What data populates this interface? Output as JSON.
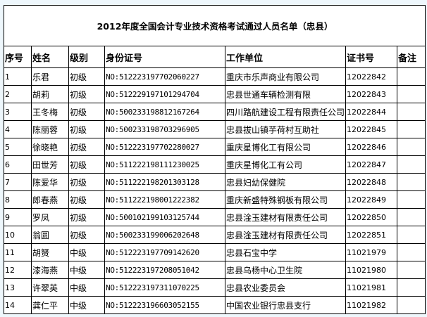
{
  "title": "2012年度全国会计专业技术资格考试通过人员名单（忠县）",
  "headers": [
    "序号",
    "姓名",
    "级别",
    "身份证号",
    "工作单位",
    "证书号",
    "备注"
  ],
  "rows": [
    [
      "1",
      "乐君",
      "初级",
      "NO:512223197702060227",
      "重庆市乐声商业有限公司",
      "12022842",
      ""
    ],
    [
      "2",
      "胡莉",
      "初级",
      "NO:512229197101294704",
      "忠县世通车辆检测有限",
      "12022843",
      ""
    ],
    [
      "3",
      "王冬梅",
      "初级",
      "NO:500233198812167264",
      "四川路航建设工程有限责任公司",
      "12022844",
      ""
    ],
    [
      "4",
      "陈丽蓉",
      "初级",
      "NO:500233198703296905",
      "忠县拔山镇芋荷村互助社",
      "12022845",
      ""
    ],
    [
      "5",
      "徐晓艳",
      "初级",
      "NO:512223197702280027",
      "重庆星博化工有限公司",
      "12022846",
      ""
    ],
    [
      "6",
      "田世芳",
      "初级",
      "NO:511222198111230025",
      "重庆星博化工有公司",
      "12022847",
      ""
    ],
    [
      "7",
      "陈爱华",
      "初级",
      "NO:511222198201303128",
      "忠县妇幼保健院",
      "12022848",
      ""
    ],
    [
      "8",
      "郎春燕",
      "初级",
      "NO:511222198001222382",
      "重庆新盛特殊钢板有限公司",
      "12022849",
      ""
    ],
    [
      "9",
      "罗凤",
      "初级",
      "NO:500102199103125744",
      "忠县淦玉建材有限责任公司",
      "12022850",
      ""
    ],
    [
      "10",
      "翁圆",
      "初级",
      "NO:500233199006202648",
      "忠县淦玉建材有限责任公司",
      "12022851",
      ""
    ],
    [
      "11",
      "胡赟",
      "中级",
      "NO:512223197709142620",
      "忠县石宝中学",
      "11021979",
      ""
    ],
    [
      "12",
      "漆海燕",
      "中级",
      "NO:512223197208051042",
      "忠县乌杨中心卫生院",
      "11021980",
      ""
    ],
    [
      "13",
      "许翠英",
      "中级",
      "NO:512223197311070225",
      "忠县农业委员会",
      "11021981",
      ""
    ],
    [
      "14",
      "龚仁平",
      "中级",
      "NO:512223196603052155",
      "中国农业银行忠县支行",
      "11021982",
      ""
    ]
  ]
}
